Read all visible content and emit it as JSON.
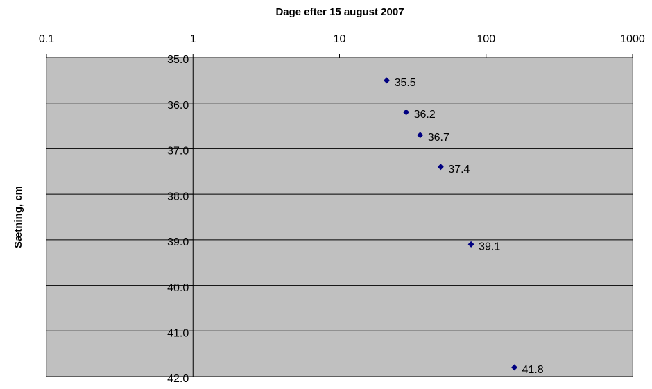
{
  "chart_data": {
    "type": "scatter",
    "title": "Dage efter 15 august 2007",
    "y_label": "Sætning, cm",
    "x": [
      21,
      28.5,
      35.5,
      49,
      79,
      156
    ],
    "series": [
      {
        "color": "#000080",
        "values": [
          35.5,
          36.2,
          36.7,
          37.4,
          39.1,
          41.8
        ]
      }
    ],
    "xlim": [
      0.1,
      1000
    ],
    "xticks": [
      0.1,
      1,
      10,
      100,
      1000
    ],
    "x_log": true,
    "ylim": [
      35,
      42
    ],
    "y_reversed": true,
    "yticks": [
      {
        "value": 35,
        "label": "35.0"
      },
      {
        "value": 36,
        "label": "36.0"
      },
      {
        "value": 37,
        "label": "37.0"
      },
      {
        "value": 38,
        "label": "38.0"
      },
      {
        "value": 39,
        "label": "39.0"
      },
      {
        "value": 40,
        "label": "40.0"
      },
      {
        "value": 41,
        "label": "41.0"
      },
      {
        "value": 42,
        "label": "42.0"
      }
    ],
    "y_axis_at_x": 1,
    "grid": true,
    "plot_background": "#c0c0c0"
  }
}
